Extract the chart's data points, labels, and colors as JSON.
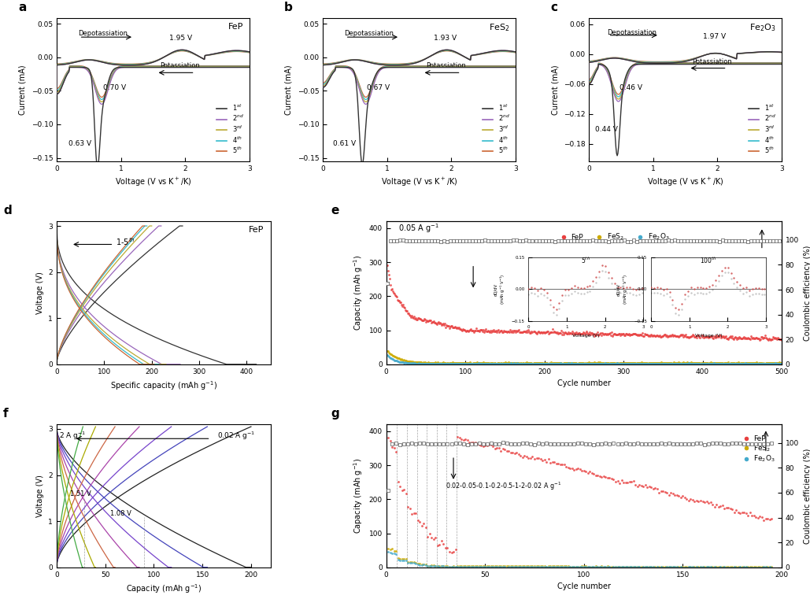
{
  "cv_colors": [
    "#333333",
    "#9966bb",
    "#bbaa33",
    "#33bbcc",
    "#cc6633"
  ],
  "panel_labels": [
    "a",
    "b",
    "c",
    "d",
    "e",
    "f",
    "g"
  ],
  "cv_a_title": "FeP",
  "cv_b_title": "FeS$_2$",
  "cv_c_title": "Fe$_2$O$_3$",
  "legend_entries": [
    "1$^{st}$",
    "2$^{nd}$",
    "3$^{rd}$",
    "4$^{th}$",
    "5$^{th}$"
  ],
  "scatter_colors": {
    "FeP": "#e84040",
    "FeS2": "#ccaa00",
    "Fe2O3": "#44aacc"
  },
  "gcd_colors_d": [
    "#333333",
    "#9966bb",
    "#bbaa33",
    "#33bbcc",
    "#cc6633"
  ],
  "rate_colors_f": [
    "#222222",
    "#4444bb",
    "#7744cc",
    "#aa44aa",
    "#cc6644",
    "#aaaa00",
    "#44aa44",
    "#44aaaa",
    "#4466cc",
    "#cc4444",
    "#888888",
    "#cc8844"
  ],
  "background_color": "#ffffff"
}
